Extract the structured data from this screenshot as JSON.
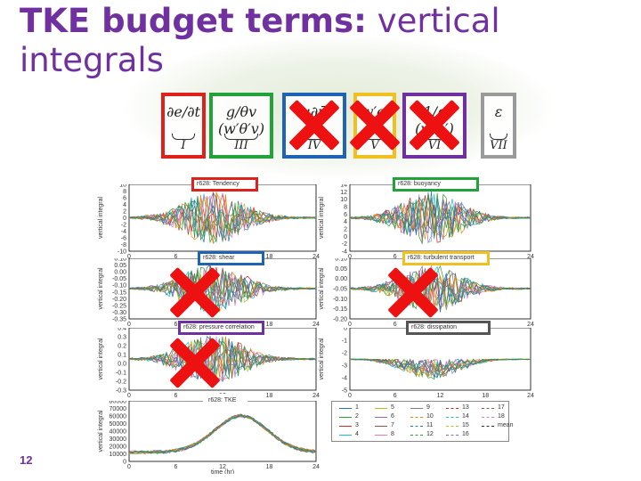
{
  "slide": {
    "title_bold": "TKE budget terms:",
    "title_rest": " vertical integrals",
    "page_number": "12"
  },
  "equation_terms": [
    {
      "id": "I",
      "expr": "∂e/∂t",
      "label": "I",
      "color": "#e0211b",
      "crossed": false
    },
    {
      "id": "III",
      "expr": "g/θv (w′θ′v)",
      "label": "III",
      "color": "#22a33a",
      "crossed": false
    },
    {
      "id": "IV",
      "expr": "u∂ū",
      "label": "IV",
      "color": "#1f63b5",
      "crossed": true
    },
    {
      "id": "V",
      "expr": "w′e′",
      "label": "V",
      "color": "#f0c020",
      "crossed": true
    },
    {
      "id": "VI",
      "expr": "1/ρ (w′p′)",
      "label": "VI",
      "color": "#7030a0",
      "crossed": true
    },
    {
      "id": "VII",
      "expr": "ε",
      "label": "VII",
      "color": "#9a9a9a",
      "crossed": false
    }
  ],
  "panels": [
    {
      "title": "r628: Tendency",
      "box_color": "#e0211b",
      "yticks": [
        "10",
        "8",
        "6",
        "4",
        "2",
        "0",
        "-2",
        "-4",
        "-6",
        "-8",
        "-10"
      ],
      "ylabel": "vertical integral",
      "crossed": false
    },
    {
      "title": "r628: buoyancy",
      "box_color": "#22a33a",
      "yticks": [
        "14",
        "12",
        "10",
        "8",
        "6",
        "4",
        "2",
        "0",
        "-2",
        "-4"
      ],
      "ylabel": "vertical integral",
      "crossed": false
    },
    {
      "title": "r628: shear",
      "box_color": "#1f63b5",
      "yticks": [
        "0.10",
        "0.05",
        "0.00",
        "-0.05",
        "-0.10",
        "-0.15",
        "-0.20",
        "-0.25",
        "-0.30",
        "-0.35"
      ],
      "ylabel": "vertical integral",
      "crossed": true
    },
    {
      "title": "r628: turbulent transport",
      "box_color": "#f0c020",
      "yticks": [
        "0.10",
        "0.05",
        "0.00",
        "-0.05",
        "-0.10",
        "-0.15",
        "-0.20"
      ],
      "ylabel": "vertical integral",
      "crossed": true
    },
    {
      "title": "r628: pressure correlation",
      "box_color": "#7030a0",
      "yticks": [
        "0.4",
        "0.3",
        "0.2",
        "0.1",
        "0.0",
        "-0.1",
        "-0.2",
        "-0.3"
      ],
      "ylabel": "vertical integral",
      "crossed": true
    },
    {
      "title": "r628: dissipation",
      "box_color": "#555555",
      "yticks": [
        "0",
        "-1",
        "-2",
        "-3",
        "-4",
        "-5"
      ],
      "ylabel": "vertical integral",
      "crossed": false
    },
    {
      "title": "r628: TKE",
      "box_color": "none",
      "yticks": [
        "80000",
        "70000",
        "60000",
        "50000",
        "40000",
        "30000",
        "20000",
        "10000",
        "0"
      ],
      "ylabel": "vertical integral",
      "crossed": false
    }
  ],
  "xticks": [
    "0",
    "6",
    "12",
    "18",
    "24"
  ],
  "xlabel": "time (hr)",
  "legend": {
    "entries": [
      "1",
      "2",
      "3",
      "4",
      "5",
      "6",
      "7",
      "8",
      "9",
      "10",
      "11",
      "12",
      "13",
      "14",
      "15",
      "16",
      "17",
      "18",
      "mean"
    ],
    "colors": [
      "#1f77b4",
      "#2ca02c",
      "#d62728",
      "#17becf",
      "#bcbd22",
      "#9467bd",
      "#8c564b",
      "#e377c2",
      "#7f7f7f",
      "#ff7f0e",
      "#1f77b4",
      "#2ca02c",
      "#d62728",
      "#17becf",
      "#bcbd22",
      "#9467bd",
      "#8c564b",
      "#e377c2",
      "#333333"
    ]
  }
}
